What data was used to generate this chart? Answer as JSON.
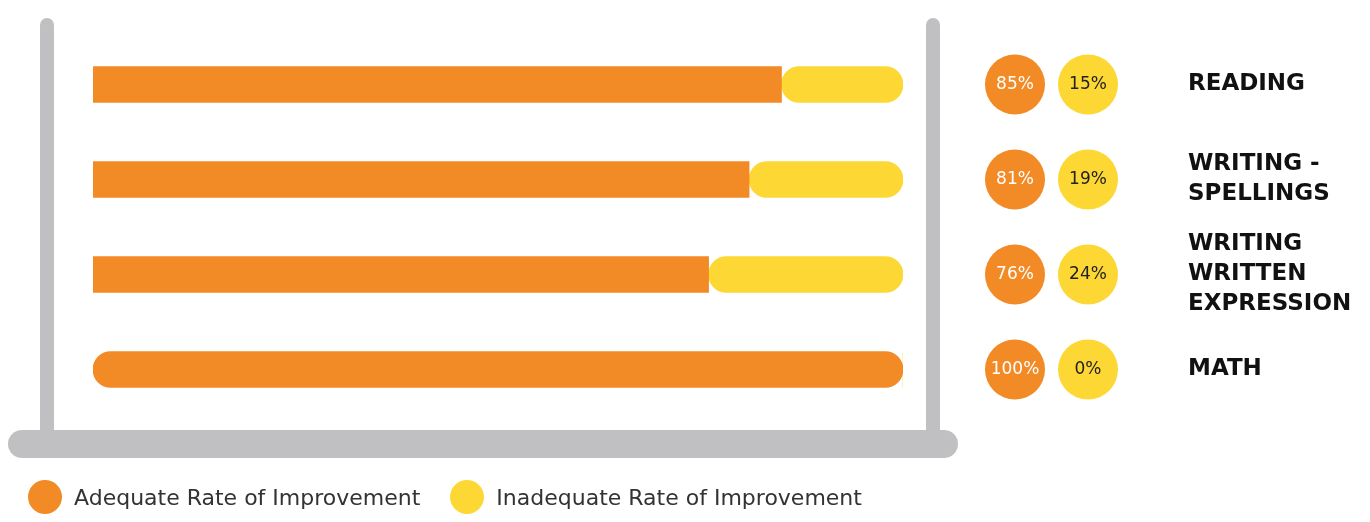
{
  "chart_data": {
    "type": "bar",
    "orientation": "horizontal",
    "stacked": true,
    "categories": [
      "READING",
      "WRITING - SPELLINGS",
      "WRITING WRITTEN EXPRESSION",
      "MATH"
    ],
    "xlim": [
      0,
      100
    ],
    "tick_labels": "y",
    "legend": "bottom left",
    "series": [
      {
        "name": "Adequate Rate of Improvement",
        "color": "#f28a26",
        "values": [
          85,
          81,
          76,
          100
        ],
        "value_labels": [
          "85%",
          "81%",
          "76%",
          "100%"
        ]
      },
      {
        "name": "Inadequate Rate of Improvement",
        "color": "#fdd835",
        "values": [
          15,
          19,
          24,
          0
        ],
        "value_labels": [
          "15%",
          "19%",
          "24%",
          "0%"
        ]
      }
    ]
  }
}
